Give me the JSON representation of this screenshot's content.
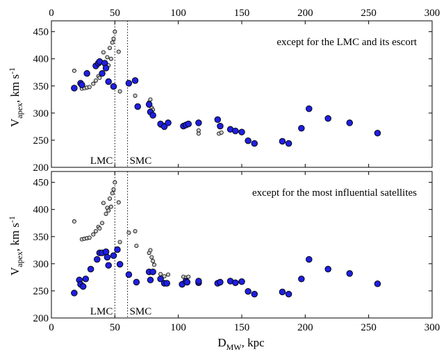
{
  "chart_data": [
    {
      "type": "scatter",
      "annotation": "except for the LMC and its escort",
      "vline_labels": [
        "LMC",
        "SMC"
      ],
      "vlines_x": [
        50,
        60
      ],
      "xlim": [
        0,
        300
      ],
      "ylim": [
        200,
        470
      ],
      "x_ticks": [
        0,
        50,
        100,
        150,
        200,
        250,
        300
      ],
      "y_ticks": [
        200,
        250,
        300,
        350,
        400,
        450
      ],
      "series": [
        {
          "marker": "small-grey",
          "color": "#c8c8c8",
          "points": [
            [
              18,
              378
            ],
            [
              24,
              345
            ],
            [
              26,
              346
            ],
            [
              28,
              347
            ],
            [
              30,
              348
            ],
            [
              33,
              354
            ],
            [
              35,
              360
            ],
            [
              37,
              368
            ],
            [
              38,
              365
            ],
            [
              40,
              375
            ],
            [
              41,
              412
            ],
            [
              43,
              392
            ],
            [
              44,
              403
            ],
            [
              45,
              388
            ],
            [
              46,
              420
            ],
            [
              47,
              400
            ],
            [
              48,
              430
            ],
            [
              49,
              437
            ],
            [
              50,
              450
            ],
            [
              53,
              413
            ],
            [
              54,
              340
            ],
            [
              61,
              357
            ],
            [
              66,
              332
            ],
            [
              77,
              320
            ],
            [
              78,
              325
            ],
            [
              79,
              310
            ],
            [
              80,
              306
            ],
            [
              86,
              277
            ],
            [
              89,
              278
            ],
            [
              92,
              280
            ],
            [
              104,
              278
            ],
            [
              106,
              276
            ],
            [
              116,
              268
            ],
            [
              116,
              262
            ],
            [
              132,
              262
            ],
            [
              134,
              264
            ]
          ]
        },
        {
          "marker": "large-blue",
          "color": "#1f1fe0",
          "points": [
            [
              18,
              346
            ],
            [
              23,
              355
            ],
            [
              24,
              352
            ],
            [
              28,
              373
            ],
            [
              35,
              387
            ],
            [
              37,
              392
            ],
            [
              38,
              395
            ],
            [
              40,
              373
            ],
            [
              42,
              392
            ],
            [
              43,
              383
            ],
            [
              45,
              358
            ],
            [
              49,
              349
            ],
            [
              61,
              355
            ],
            [
              66,
              360
            ],
            [
              68,
              312
            ],
            [
              77,
              316
            ],
            [
              78,
              302
            ],
            [
              80,
              296
            ],
            [
              86,
              280
            ],
            [
              89,
              275
            ],
            [
              92,
              282
            ],
            [
              104,
              276
            ],
            [
              106,
              278
            ],
            [
              108,
              280
            ],
            [
              116,
              282
            ],
            [
              131,
              288
            ],
            [
              133,
              276
            ],
            [
              141,
              270
            ],
            [
              145,
              267
            ],
            [
              150,
              265
            ],
            [
              155,
              249
            ],
            [
              160,
              244
            ],
            [
              182,
              248
            ],
            [
              187,
              244
            ],
            [
              197,
              272
            ],
            [
              203,
              308
            ],
            [
              218,
              290
            ],
            [
              235,
              282
            ],
            [
              257,
              263
            ]
          ]
        }
      ]
    },
    {
      "type": "scatter",
      "annotation": "except for the most influential satellites",
      "vline_labels": [
        "LMC",
        "SMC"
      ],
      "vlines_x": [
        50,
        60
      ],
      "xlim": [
        0,
        300
      ],
      "ylim": [
        200,
        470
      ],
      "x_ticks": [
        0,
        50,
        100,
        150,
        200,
        250,
        300
      ],
      "y_ticks": [
        200,
        250,
        300,
        350,
        400,
        450
      ],
      "xlabel": "D",
      "xlabel_sub": "MW",
      "xlabel_tail": ", kpc",
      "series": [
        {
          "marker": "small-grey",
          "color": "#c8c8c8",
          "points": [
            [
              18,
              378
            ],
            [
              24,
              345
            ],
            [
              26,
              346
            ],
            [
              28,
              347
            ],
            [
              30,
              348
            ],
            [
              33,
              354
            ],
            [
              35,
              360
            ],
            [
              37,
              368
            ],
            [
              38,
              365
            ],
            [
              40,
              375
            ],
            [
              41,
              412
            ],
            [
              43,
              392
            ],
            [
              44,
              403
            ],
            [
              45,
              398
            ],
            [
              46,
              420
            ],
            [
              47,
              405
            ],
            [
              48,
              430
            ],
            [
              49,
              437
            ],
            [
              50,
              450
            ],
            [
              53,
              413
            ],
            [
              54,
              340
            ],
            [
              61,
              357
            ],
            [
              66,
              360
            ],
            [
              67,
              333
            ],
            [
              77,
              320
            ],
            [
              78,
              325
            ],
            [
              79,
              312
            ],
            [
              80,
              305
            ],
            [
              81,
              298
            ],
            [
              86,
              281
            ],
            [
              89,
              277
            ],
            [
              92,
              280
            ],
            [
              104,
              276
            ],
            [
              106,
              274
            ],
            [
              108,
              276
            ],
            [
              116,
              266
            ],
            [
              132,
              264
            ]
          ]
        },
        {
          "marker": "large-blue",
          "color": "#1f1fe0",
          "points": [
            [
              18,
              246
            ],
            [
              22,
              270
            ],
            [
              23,
              262
            ],
            [
              25,
              258
            ],
            [
              27,
              272
            ],
            [
              31,
              290
            ],
            [
              36,
              308
            ],
            [
              38,
              320
            ],
            [
              40,
              320
            ],
            [
              43,
              322
            ],
            [
              44,
              312
            ],
            [
              45,
              297
            ],
            [
              49,
              315
            ],
            [
              52,
              326
            ],
            [
              54,
              299
            ],
            [
              61,
              280
            ],
            [
              67,
              266
            ],
            [
              77,
              285
            ],
            [
              78,
              270
            ],
            [
              80,
              285
            ],
            [
              86,
              272
            ],
            [
              89,
              264
            ],
            [
              91,
              264
            ],
            [
              103,
              262
            ],
            [
              106,
              268
            ],
            [
              107,
              266
            ],
            [
              116,
              265
            ],
            [
              116,
              268
            ],
            [
              131,
              264
            ],
            [
              133,
              266
            ],
            [
              141,
              268
            ],
            [
              145,
              265
            ],
            [
              150,
              267
            ],
            [
              155,
              249
            ],
            [
              160,
              244
            ],
            [
              182,
              248
            ],
            [
              187,
              244
            ],
            [
              197,
              272
            ],
            [
              203,
              308
            ],
            [
              218,
              290
            ],
            [
              235,
              282
            ],
            [
              257,
              263
            ]
          ]
        }
      ]
    }
  ],
  "ylabel": {
    "main": "V",
    "sub": "apex",
    "tail": ", km s",
    "sup": "-1"
  }
}
